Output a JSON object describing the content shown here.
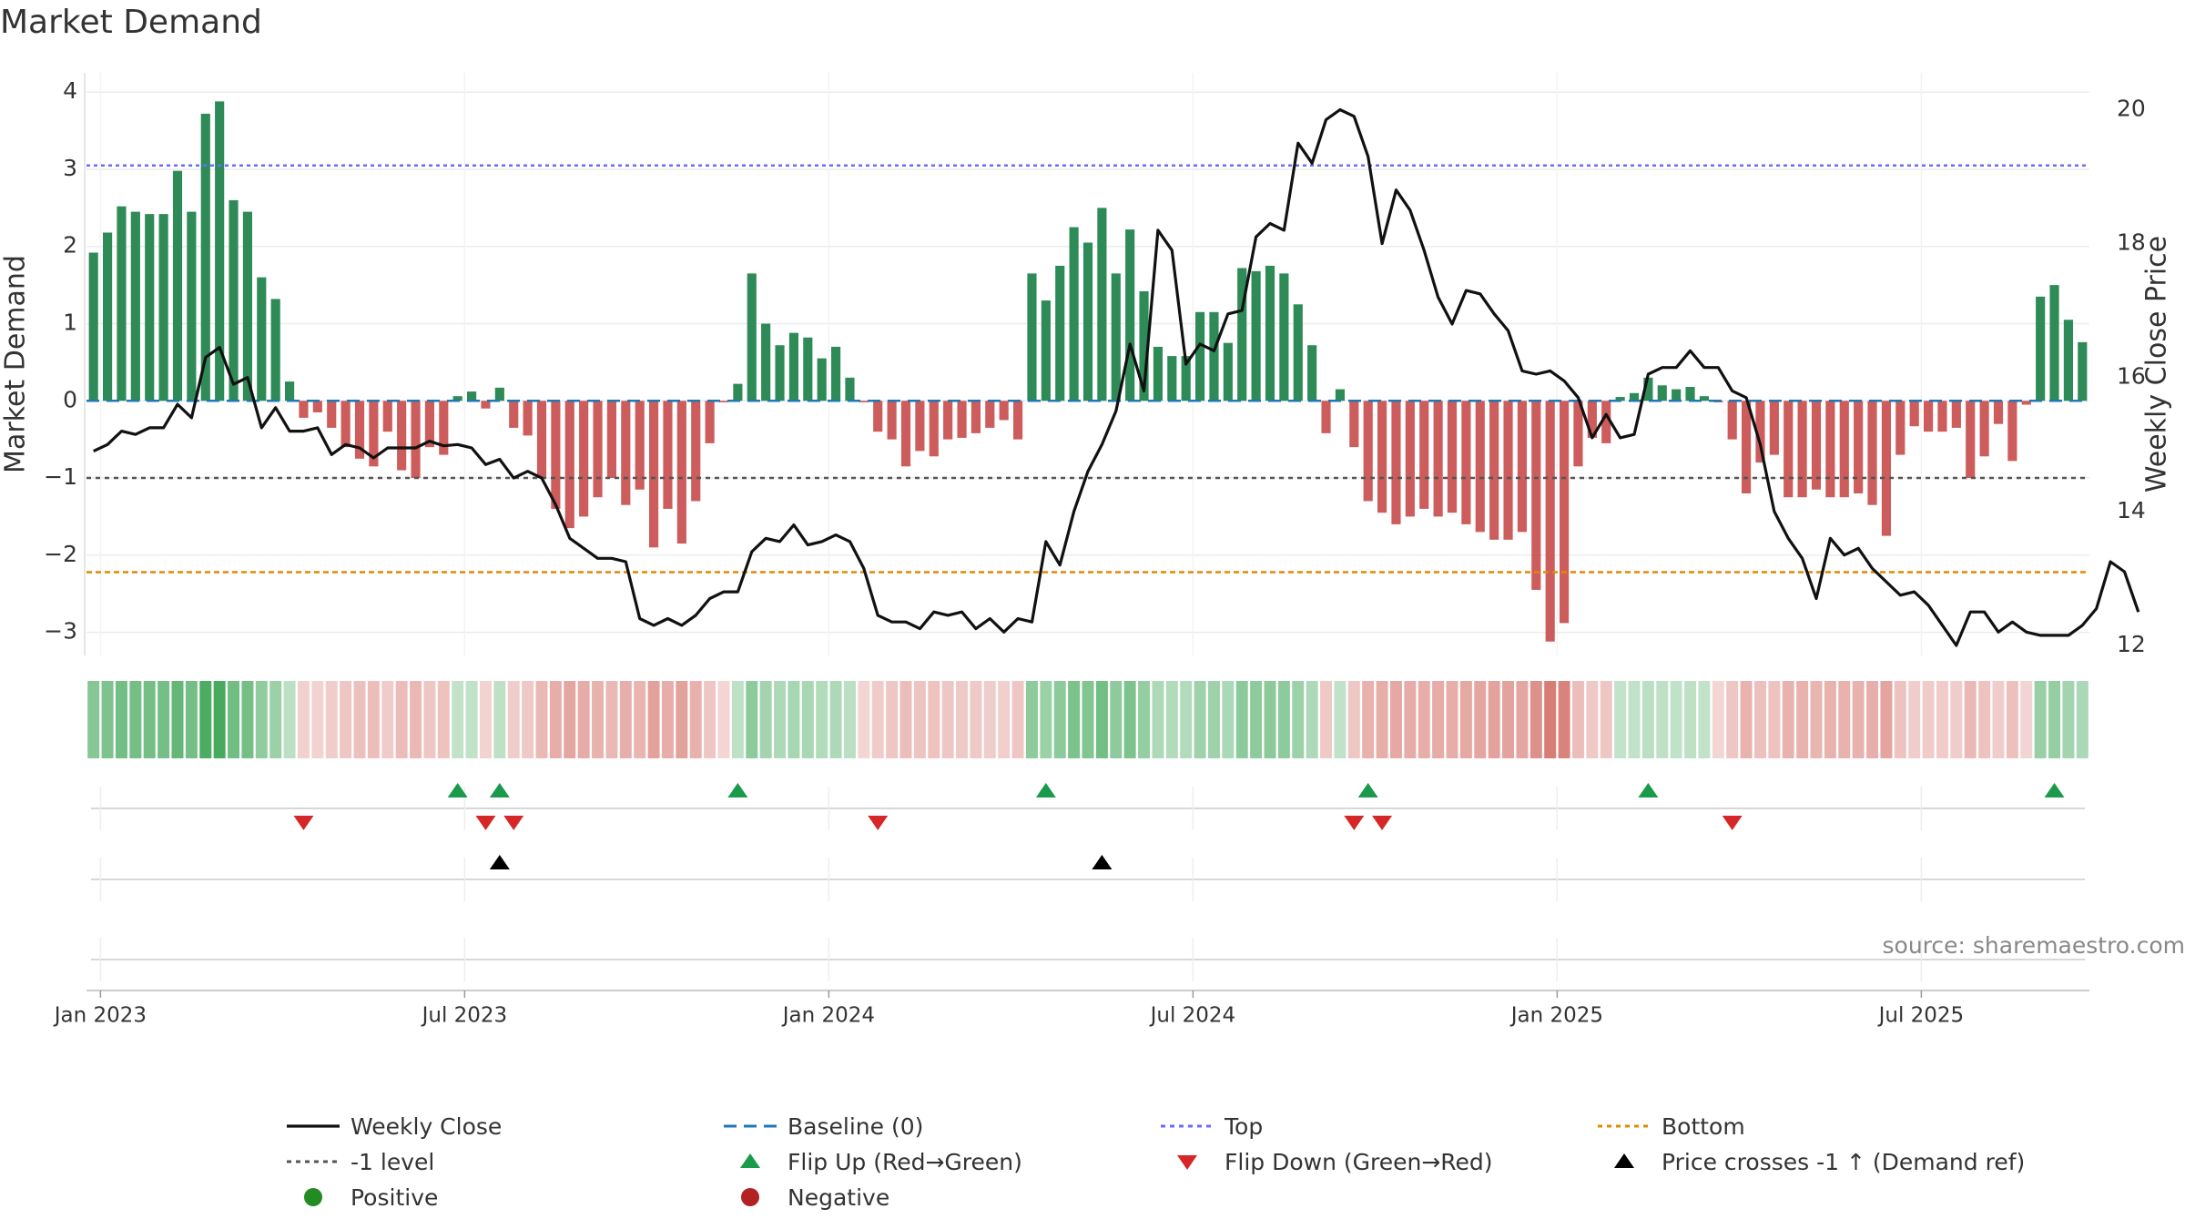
{
  "title": "Market Demand",
  "source": "source: sharemaestro.com",
  "colors": {
    "positive_bar": "#2e8b57",
    "negative_bar": "#cd5c5c",
    "price_line": "#111111",
    "top_line": "#6b6bff",
    "bottom_line": "#e08a00",
    "minus1_line": "#555555",
    "baseline": "#1f77b4",
    "flip_up": "#1a9a4a",
    "flip_down": "#d62728",
    "cross_marker": "#000000",
    "positive_dot": "#228b22",
    "negative_dot": "#b22222"
  },
  "chart_data": {
    "type": "bar",
    "title": "Market Demand",
    "ylabel": "Market Demand",
    "y2label": "Weekly Close Price",
    "ylim": [
      -3.3,
      4.25
    ],
    "y2lim": [
      11.85,
      20.55
    ],
    "yticks": [
      4,
      3,
      2,
      1,
      0,
      -1,
      -2,
      -3
    ],
    "y2ticks": [
      20,
      18,
      16,
      14,
      12
    ],
    "xtick_labels": [
      "Jan 2023",
      "Jul 2023",
      "Jan 2024",
      "Jul 2024",
      "Jan 2025",
      "Jul 2025"
    ],
    "xtick_weeks": [
      1,
      27,
      53,
      79,
      105,
      131
    ],
    "reference_levels": {
      "top": 3.05,
      "bottom": -2.22,
      "minus_one": -1,
      "baseline": 0
    },
    "demand": [
      1.92,
      2.18,
      2.52,
      2.45,
      2.42,
      2.42,
      2.98,
      2.45,
      3.72,
      3.88,
      2.6,
      2.45,
      1.6,
      1.32,
      0.25,
      -0.22,
      -0.15,
      -0.35,
      -0.6,
      -0.75,
      -0.85,
      -0.4,
      -0.9,
      -1.0,
      -0.6,
      -0.7,
      0.06,
      0.12,
      -0.1,
      0.17,
      -0.35,
      -0.45,
      -1.0,
      -1.4,
      -1.65,
      -1.5,
      -1.25,
      -1.0,
      -1.35,
      -1.15,
      -1.9,
      -1.4,
      -1.85,
      -1.3,
      -0.55,
      -0.02,
      0.22,
      1.65,
      1.0,
      0.72,
      0.88,
      0.82,
      0.55,
      0.7,
      0.3,
      -0.02,
      -0.4,
      -0.5,
      -0.85,
      -0.65,
      -0.72,
      -0.5,
      -0.48,
      -0.42,
      -0.35,
      -0.25,
      -0.5,
      1.65,
      1.3,
      1.75,
      2.25,
      2.05,
      2.5,
      1.65,
      2.22,
      1.42,
      0.7,
      0.58,
      0.58,
      1.15,
      1.15,
      0.75,
      1.72,
      1.68,
      1.75,
      1.65,
      1.25,
      0.72,
      -0.42,
      0.15,
      -0.6,
      -1.3,
      -1.45,
      -1.6,
      -1.5,
      -1.4,
      -1.5,
      -1.45,
      -1.6,
      -1.7,
      -1.8,
      -1.8,
      -1.7,
      -2.45,
      -3.12,
      -2.88,
      -0.85,
      -0.48,
      -0.55,
      0.05,
      0.1,
      0.3,
      0.2,
      0.15,
      0.18,
      0.06,
      -0.02,
      -0.5,
      -1.2,
      -0.8,
      -0.7,
      -1.25,
      -1.25,
      -1.15,
      -1.25,
      -1.25,
      -1.2,
      -1.35,
      -1.75,
      -0.7,
      -0.33,
      -0.4,
      -0.4,
      -0.35,
      -1.0,
      -0.72,
      -0.3,
      -0.78,
      -0.05,
      1.35,
      1.5,
      1.05,
      0.76
    ],
    "close": [
      14.9,
      15.0,
      15.2,
      15.15,
      15.25,
      15.25,
      15.6,
      15.4,
      16.3,
      16.45,
      15.9,
      16.0,
      15.25,
      15.55,
      15.2,
      15.2,
      15.25,
      14.85,
      15.0,
      14.95,
      14.8,
      14.95,
      14.95,
      14.95,
      15.05,
      14.98,
      15.0,
      14.95,
      14.7,
      14.78,
      14.5,
      14.6,
      14.5,
      14.1,
      13.6,
      13.45,
      13.3,
      13.3,
      13.25,
      12.4,
      12.3,
      12.4,
      12.3,
      12.45,
      12.7,
      12.8,
      12.8,
      13.4,
      13.6,
      13.55,
      13.8,
      13.5,
      13.55,
      13.65,
      13.55,
      13.15,
      12.45,
      12.35,
      12.35,
      12.25,
      12.5,
      12.45,
      12.5,
      12.25,
      12.4,
      12.2,
      12.4,
      12.35,
      13.55,
      13.2,
      14.0,
      14.6,
      15.0,
      15.5,
      16.5,
      15.8,
      18.2,
      17.9,
      16.2,
      16.5,
      16.4,
      16.95,
      17.0,
      18.1,
      18.3,
      18.2,
      19.5,
      19.2,
      19.85,
      20.0,
      19.9,
      19.3,
      18.0,
      18.8,
      18.5,
      17.9,
      17.2,
      16.8,
      17.3,
      17.25,
      16.95,
      16.7,
      16.1,
      16.05,
      16.1,
      15.95,
      15.7,
      15.1,
      15.45,
      15.1,
      15.15,
      16.05,
      16.15,
      16.15,
      16.4,
      16.15,
      16.15,
      15.8,
      15.7,
      15.0,
      14.0,
      13.6,
      13.3,
      12.7,
      13.6,
      13.35,
      13.45,
      13.15,
      12.95,
      12.75,
      12.8,
      12.6,
      12.3,
      12.0,
      12.5,
      12.5,
      12.2,
      12.35,
      12.2,
      12.15,
      12.15,
      12.15,
      12.3,
      12.55,
      13.25,
      13.1,
      12.5
    ]
  },
  "signals": {
    "flip_up_weeks": [
      26,
      29,
      46,
      68,
      91,
      111,
      140
    ],
    "flip_down_weeks": [
      15,
      28,
      30,
      56,
      90,
      92,
      117
    ],
    "cross_weeks": [
      29,
      72
    ]
  },
  "legend": [
    {
      "label": "Weekly Close",
      "kind": "line-solid",
      "color_key": "price_line"
    },
    {
      "label": "Baseline (0)",
      "kind": "line-dash",
      "color_key": "baseline"
    },
    {
      "label": "Top",
      "kind": "line-dot",
      "color_key": "top_line"
    },
    {
      "label": "Bottom",
      "kind": "line-dot",
      "color_key": "bottom_line"
    },
    {
      "label": "-1 level",
      "kind": "line-dot",
      "color_key": "minus1_line"
    },
    {
      "label": "Flip Up (Red→Green)",
      "kind": "tri-up",
      "color_key": "flip_up"
    },
    {
      "label": "Flip Down (Green→Red)",
      "kind": "tri-down",
      "color_key": "flip_down"
    },
    {
      "label": "Price crosses -1 ↑ (Demand ref)",
      "kind": "tri-up",
      "color_key": "cross_marker"
    },
    {
      "label": "Positive",
      "kind": "dot",
      "color_key": "positive_dot"
    },
    {
      "label": "Negative",
      "kind": "dot",
      "color_key": "negative_dot"
    }
  ]
}
